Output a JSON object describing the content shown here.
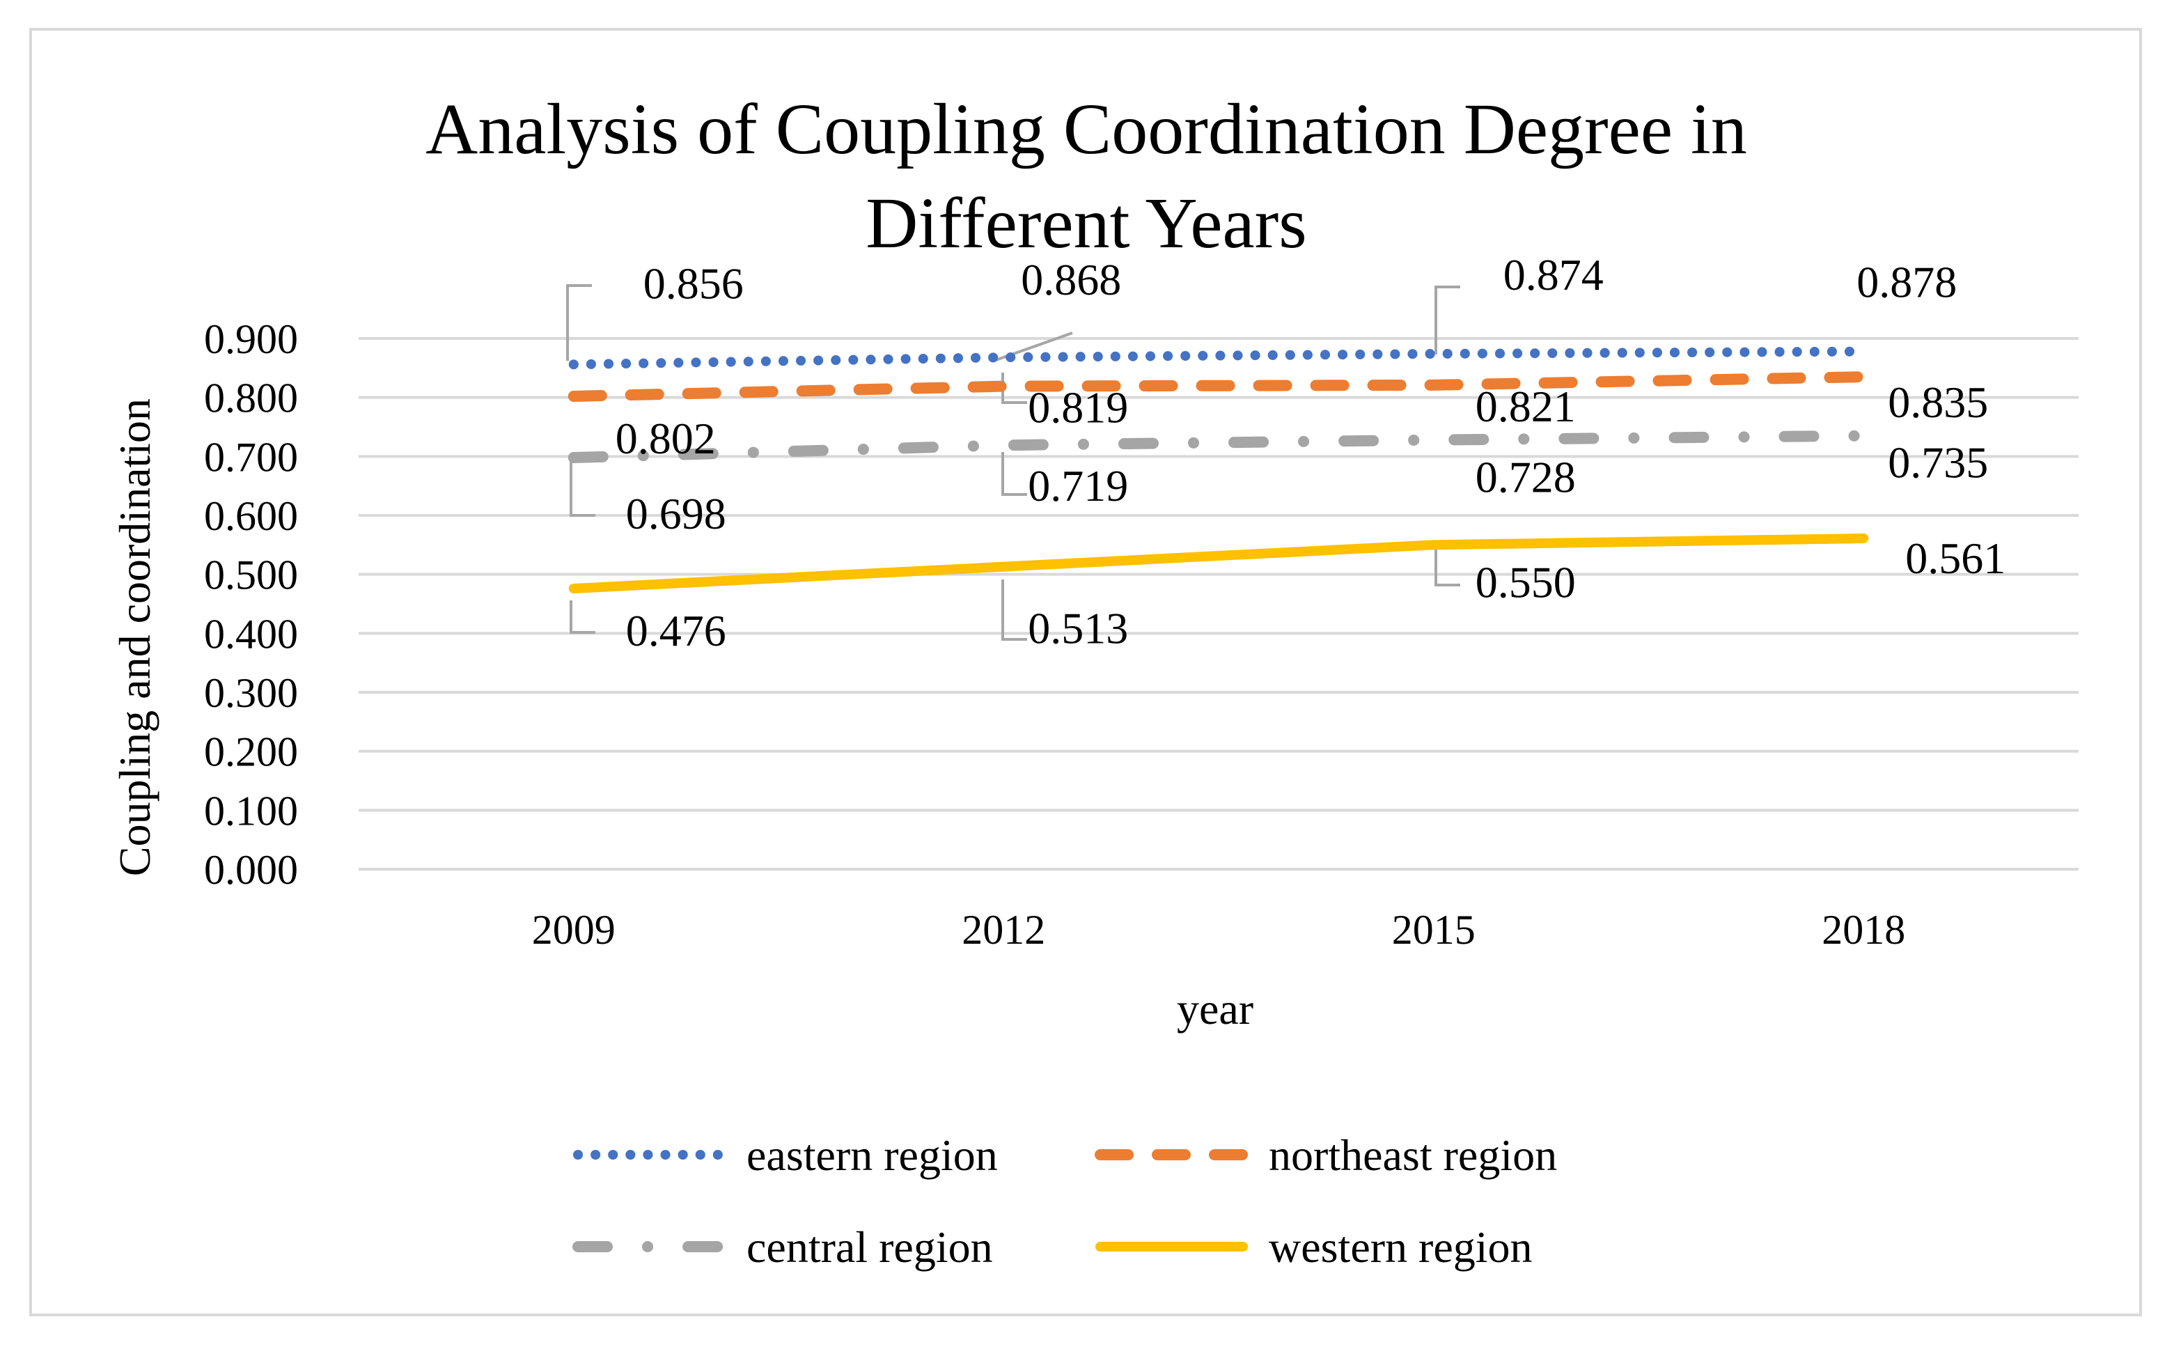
{
  "chart_data": {
    "type": "line",
    "title": "Analysis of Coupling Coordination Degree in Different Years",
    "title_lines": [
      "Analysis of Coupling Coordination Degree in",
      "Different Years"
    ],
    "xlabel": "year",
    "ylabel": "Coupling and coordination",
    "categories": [
      "2009",
      "2012",
      "2015",
      "2018"
    ],
    "ylim": [
      0,
      0.9
    ],
    "yticks": [
      "0.000",
      "0.100",
      "0.200",
      "0.300",
      "0.400",
      "0.500",
      "0.600",
      "0.700",
      "0.800",
      "0.900"
    ],
    "grid": true,
    "legend_position": "bottom",
    "series": [
      {
        "name": "eastern region",
        "values": [
          0.856,
          0.868,
          0.874,
          0.878
        ],
        "labels": [
          "0.856",
          "0.868",
          "0.874",
          "0.878"
        ],
        "color": "#4472c4",
        "style": "dotted"
      },
      {
        "name": "northeast region",
        "values": [
          0.802,
          0.819,
          0.821,
          0.835
        ],
        "labels": [
          "0.802",
          "0.819",
          "0.821",
          "0.835"
        ],
        "color": "#ed7d31",
        "style": "dashed"
      },
      {
        "name": "central region",
        "values": [
          0.698,
          0.719,
          0.728,
          0.735
        ],
        "labels": [
          "0.698",
          "0.719",
          "0.728",
          "0.735"
        ],
        "color": "#a5a5a5",
        "style": "dash-dot"
      },
      {
        "name": "western region",
        "values": [
          0.476,
          0.513,
          0.55,
          0.561
        ],
        "labels": [
          "0.476",
          "0.513",
          "0.550",
          "0.561"
        ],
        "color": "#ffc000",
        "style": "solid"
      }
    ]
  }
}
